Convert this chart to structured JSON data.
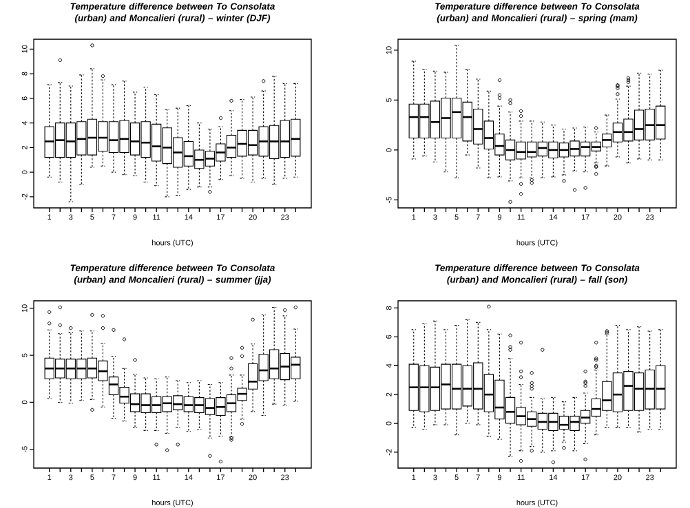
{
  "chart_data": [
    {
      "type": "box",
      "title": "Temperature difference between To Consolata (urban) and Moncalieri (rural) – winter (DJF)",
      "xlabel": "hours (UTC)",
      "categories": [
        "1",
        null,
        "3",
        null,
        "5",
        null,
        "7",
        null,
        "9",
        null,
        "11",
        null,
        null,
        "14",
        null,
        null,
        "17",
        null,
        null,
        "20",
        null,
        null,
        "23",
        null
      ],
      "ylim": [
        -2.9,
        10.8
      ],
      "yticks": [
        -2,
        0,
        2,
        4,
        6,
        8,
        10
      ],
      "boxes": [
        {
          "low": -0.4,
          "q1": 1.2,
          "median": 2.5,
          "q3": 3.7,
          "high": 7.1
        },
        {
          "low": -0.8,
          "q1": 1.2,
          "median": 2.6,
          "q3": 4.0,
          "high": 7.3,
          "outliers": [
            9.1
          ]
        },
        {
          "low": -2.4,
          "q1": 1.2,
          "median": 2.5,
          "q3": 4.0,
          "high": 7.0
        },
        {
          "low": -1.0,
          "q1": 1.4,
          "median": 2.7,
          "q3": 4.1,
          "high": 7.9
        },
        {
          "low": 0.4,
          "q1": 1.4,
          "median": 2.8,
          "q3": 4.3,
          "high": 8.4,
          "outliers": [
            10.3
          ]
        },
        {
          "low": 0.5,
          "q1": 1.7,
          "median": 2.8,
          "q3": 4.1,
          "high": 7.5,
          "outliers": [
            7.8
          ]
        },
        {
          "low": 0.0,
          "q1": 1.6,
          "median": 2.6,
          "q3": 4.1,
          "high": 7.1
        },
        {
          "low": -0.2,
          "q1": 1.6,
          "median": 2.7,
          "q3": 4.2,
          "high": 7.4
        },
        {
          "low": -0.3,
          "q1": 1.4,
          "median": 2.5,
          "q3": 4.0,
          "high": 6.5
        },
        {
          "low": -0.8,
          "q1": 1.2,
          "median": 2.4,
          "q3": 4.1,
          "high": 6.9
        },
        {
          "low": -1.1,
          "q1": 0.9,
          "median": 2.1,
          "q3": 3.9,
          "high": 6.3
        },
        {
          "low": -2.0,
          "q1": 0.7,
          "median": 2.0,
          "q3": 3.6,
          "high": 5.1
        },
        {
          "low": -1.9,
          "q1": 0.4,
          "median": 1.6,
          "q3": 2.8,
          "high": 5.2
        },
        {
          "low": -1.4,
          "q1": 0.5,
          "median": 1.3,
          "q3": 2.5,
          "high": 5.4
        },
        {
          "low": -1.2,
          "q1": 0.3,
          "median": 1.0,
          "q3": 1.8,
          "high": 4.0
        },
        {
          "low": -1.2,
          "q1": 0.5,
          "median": 1.1,
          "q3": 1.7,
          "high": 3.5,
          "outliers": [
            -1.6
          ]
        },
        {
          "low": -0.6,
          "q1": 0.9,
          "median": 1.6,
          "q3": 2.3,
          "high": 3.7,
          "outliers": [
            4.4
          ]
        },
        {
          "low": -0.3,
          "q1": 1.2,
          "median": 2.0,
          "q3": 3.0,
          "high": 5.0,
          "outliers": [
            5.8
          ]
        },
        {
          "low": -0.5,
          "q1": 1.3,
          "median": 2.3,
          "q3": 3.4,
          "high": 5.9
        },
        {
          "low": -0.8,
          "q1": 1.4,
          "median": 2.2,
          "q3": 3.4,
          "high": 6.1
        },
        {
          "low": -0.5,
          "q1": 1.3,
          "median": 2.5,
          "q3": 3.7,
          "high": 6.6,
          "outliers": [
            7.4
          ]
        },
        {
          "low": -1.0,
          "q1": 1.1,
          "median": 2.5,
          "q3": 3.8,
          "high": 7.8
        },
        {
          "low": -0.5,
          "q1": 1.2,
          "median": 2.5,
          "q3": 4.2,
          "high": 7.2
        },
        {
          "low": -0.4,
          "q1": 1.3,
          "median": 2.7,
          "q3": 4.3,
          "high": 7.2
        }
      ]
    },
    {
      "type": "box",
      "title": "Temperature difference between To Consolata (urban) and Moncalieri (rural) – spring (mam)",
      "xlabel": "hours (UTC)",
      "categories": [
        "1",
        null,
        "3",
        null,
        "5",
        null,
        "7",
        null,
        "9",
        null,
        "11",
        null,
        null,
        "14",
        null,
        null,
        "17",
        null,
        null,
        "20",
        null,
        null,
        "23",
        null
      ],
      "ylim": [
        -5.8,
        11.1
      ],
      "yticks": [
        -5,
        0,
        5,
        10
      ],
      "boxes": [
        {
          "low": -0.9,
          "q1": 1.2,
          "median": 3.3,
          "q3": 4.6,
          "high": 8.9
        },
        {
          "low": -0.6,
          "q1": 1.2,
          "median": 3.3,
          "q3": 4.6,
          "high": 8.1
        },
        {
          "low": -1.2,
          "q1": 1.2,
          "median": 2.8,
          "q3": 4.9,
          "high": 7.9
        },
        {
          "low": -2.2,
          "q1": 1.2,
          "median": 3.2,
          "q3": 5.2,
          "high": 7.8
        },
        {
          "low": -2.8,
          "q1": 1.2,
          "median": 3.8,
          "q3": 5.2,
          "high": 10.5
        },
        {
          "low": -0.5,
          "q1": 0.9,
          "median": 3.3,
          "q3": 4.8,
          "high": 8.1
        },
        {
          "low": -1.8,
          "q1": 0.6,
          "median": 2.1,
          "q3": 4.1,
          "high": 7.1
        },
        {
          "low": -2.8,
          "q1": 0.1,
          "median": 1.2,
          "q3": 2.9,
          "high": 5.9
        },
        {
          "low": -2.7,
          "q1": -0.5,
          "median": 0.4,
          "q3": 1.6,
          "high": 4.4,
          "outliers": [
            5.2,
            5.5,
            7.0
          ]
        },
        {
          "low": -3.1,
          "q1": -1.0,
          "median": 0.0,
          "q3": 1.0,
          "high": 3.8,
          "outliers": [
            -5.2,
            4.7,
            5.0
          ]
        },
        {
          "low": -2.8,
          "q1": -0.9,
          "median": -0.2,
          "q3": 0.8,
          "high": 2.9,
          "outliers": [
            -4.4,
            -3.4,
            3.4,
            3.9
          ]
        },
        {
          "low": -2.8,
          "q1": -0.7,
          "median": -0.2,
          "q3": 0.8,
          "high": 2.9,
          "outliers": [
            -3.3,
            -3.0
          ]
        },
        {
          "low": -2.8,
          "q1": -0.6,
          "median": 0.2,
          "q3": 0.8,
          "high": 2.8
        },
        {
          "low": -2.7,
          "q1": -0.8,
          "median": 0.0,
          "q3": 0.8,
          "high": 2.5
        },
        {
          "low": -2.5,
          "q1": -0.7,
          "median": 0.0,
          "q3": 0.7,
          "high": 2.1,
          "outliers": [
            -3.1
          ]
        },
        {
          "low": -2.1,
          "q1": -0.6,
          "median": 0.1,
          "q3": 0.9,
          "high": 2.2,
          "outliers": [
            -4.0
          ]
        },
        {
          "low": -2.2,
          "q1": -0.6,
          "median": 0.3,
          "q3": 0.8,
          "high": 2.3,
          "outliers": [
            -3.8
          ]
        },
        {
          "low": -1.3,
          "q1": -0.1,
          "median": 0.3,
          "q3": 0.8,
          "high": 1.8,
          "outliers": [
            -2.4,
            -1.7,
            -1.6,
            2.2
          ]
        },
        {
          "low": -1.6,
          "q1": 0.3,
          "median": 1.0,
          "q3": 1.6,
          "high": 3.5
        },
        {
          "low": -0.7,
          "q1": 0.8,
          "median": 1.8,
          "q3": 2.7,
          "high": 5.1,
          "outliers": [
            5.6,
            6.2,
            6.4,
            6.5
          ]
        },
        {
          "low": -1.3,
          "q1": 0.9,
          "median": 1.8,
          "q3": 3.1,
          "high": 6.4,
          "outliers": [
            6.8,
            7.0,
            7.2
          ]
        },
        {
          "low": -0.9,
          "q1": 1.0,
          "median": 2.1,
          "q3": 4.0,
          "high": 7.7
        },
        {
          "low": -1.0,
          "q1": 1.0,
          "median": 2.5,
          "q3": 4.1,
          "high": 7.6
        },
        {
          "low": -1.0,
          "q1": 1.1,
          "median": 2.5,
          "q3": 4.4,
          "high": 8.0
        }
      ]
    },
    {
      "type": "box",
      "title": "Temperature difference between To Consolata (urban) and Moncalieri (rural) – summer (jja)",
      "xlabel": "hours (UTC)",
      "categories": [
        "1",
        null,
        "3",
        null,
        "5",
        null,
        "7",
        null,
        "9",
        null,
        "11",
        null,
        null,
        "14",
        null,
        null,
        "17",
        null,
        null,
        "20",
        null,
        null,
        "23",
        null
      ],
      "ylim": [
        -7.0,
        10.8
      ],
      "yticks": [
        -5,
        0,
        5,
        10
      ],
      "boxes": [
        {
          "low": 0.4,
          "q1": 2.5,
          "median": 3.6,
          "q3": 4.7,
          "high": 7.7,
          "outliers": [
            8.4,
            9.6
          ]
        },
        {
          "low": 0.0,
          "q1": 2.6,
          "median": 3.6,
          "q3": 4.6,
          "high": 7.3,
          "outliers": [
            8.2,
            10.1
          ]
        },
        {
          "low": -0.1,
          "q1": 2.5,
          "median": 3.6,
          "q3": 4.6,
          "high": 7.4,
          "outliers": [
            7.9
          ]
        },
        {
          "low": 0.2,
          "q1": 2.5,
          "median": 3.6,
          "q3": 4.6,
          "high": 7.6
        },
        {
          "low": 0.3,
          "q1": 2.6,
          "median": 3.6,
          "q3": 4.7,
          "high": 7.6,
          "outliers": [
            -0.8,
            9.3
          ]
        },
        {
          "low": -0.5,
          "q1": 2.3,
          "median": 3.3,
          "q3": 4.4,
          "high": 6.3,
          "outliers": [
            7.9,
            9.2
          ]
        },
        {
          "low": -1.7,
          "q1": 0.8,
          "median": 1.9,
          "q3": 2.7,
          "high": 4.9,
          "outliers": [
            7.7
          ]
        },
        {
          "low": -2.0,
          "q1": -0.1,
          "median": 0.6,
          "q3": 1.6,
          "high": 3.6,
          "outliers": [
            6.7
          ]
        },
        {
          "low": -2.7,
          "q1": -1.0,
          "median": -0.2,
          "q3": 0.9,
          "high": 3.0,
          "outliers": [
            4.5
          ]
        },
        {
          "low": -3.0,
          "q1": -1.1,
          "median": -0.3,
          "q3": 0.9,
          "high": 2.6
        },
        {
          "low": -3.0,
          "q1": -1.1,
          "median": -0.3,
          "q3": 0.6,
          "high": 2.5,
          "outliers": [
            -4.5
          ]
        },
        {
          "low": -3.3,
          "q1": -1.0,
          "median": -0.1,
          "q3": 0.6,
          "high": 2.7,
          "outliers": [
            -5.1
          ]
        },
        {
          "low": -2.7,
          "q1": -0.8,
          "median": -0.2,
          "q3": 0.7,
          "high": 2.3,
          "outliers": [
            -4.5
          ]
        },
        {
          "low": -3.1,
          "q1": -1.0,
          "median": -0.3,
          "q3": 0.6,
          "high": 2.1
        },
        {
          "low": -2.9,
          "q1": -1.1,
          "median": -0.3,
          "q3": 0.5,
          "high": 2.3
        },
        {
          "low": -3.8,
          "q1": -1.3,
          "median": -0.6,
          "q3": 0.4,
          "high": 1.9,
          "outliers": [
            -5.7
          ]
        },
        {
          "low": -3.6,
          "q1": -1.4,
          "median": -0.5,
          "q3": 0.5,
          "high": 2.1,
          "outliers": [
            -6.3
          ]
        },
        {
          "low": -3.7,
          "q1": -1.0,
          "median": -0.1,
          "q3": 0.8,
          "high": 2.9,
          "outliers": [
            -4.0,
            -3.8,
            3.6,
            4.7
          ]
        },
        {
          "low": -1.8,
          "q1": 0.2,
          "median": 0.9,
          "q3": 1.5,
          "high": 2.9,
          "outliers": [
            -2.3,
            4.9,
            5.8
          ]
        },
        {
          "low": -1.0,
          "q1": 1.4,
          "median": 2.2,
          "q3": 4.1,
          "high": 6.2,
          "outliers": [
            8.8
          ]
        },
        {
          "low": -1.4,
          "q1": 2.3,
          "median": 3.4,
          "q3": 5.1,
          "high": 9.3
        },
        {
          "low": -0.2,
          "q1": 2.5,
          "median": 3.6,
          "q3": 5.6,
          "high": 10.1
        },
        {
          "low": -0.3,
          "q1": 2.4,
          "median": 3.8,
          "q3": 5.2,
          "high": 9.2,
          "outliers": [
            9.8
          ]
        },
        {
          "low": 0.1,
          "q1": 2.5,
          "median": 4.0,
          "q3": 4.8,
          "high": 7.8,
          "outliers": [
            10.1
          ]
        }
      ]
    },
    {
      "type": "box",
      "title": "Temperature difference between To Consolata (urban) and Moncalieri (rural) – fall (son)",
      "xlabel": "hours (UTC)",
      "categories": [
        "1",
        null,
        "3",
        null,
        "5",
        null,
        "7",
        null,
        "9",
        null,
        "11",
        null,
        null,
        "14",
        null,
        null,
        "17",
        null,
        null,
        "20",
        null,
        null,
        "23",
        null
      ],
      "ylim": [
        -3.1,
        8.5
      ],
      "yticks": [
        -2,
        0,
        2,
        4,
        6,
        8
      ],
      "boxes": [
        {
          "low": -0.3,
          "q1": 0.9,
          "median": 2.5,
          "q3": 4.1,
          "high": 6.5
        },
        {
          "low": -0.4,
          "q1": 0.8,
          "median": 2.5,
          "q3": 4.0,
          "high": 6.9
        },
        {
          "low": -0.1,
          "q1": 0.9,
          "median": 2.5,
          "q3": 3.9,
          "high": 7.1
        },
        {
          "low": -0.1,
          "q1": 1.0,
          "median": 2.7,
          "q3": 4.1,
          "high": 6.5
        },
        {
          "low": -0.8,
          "q1": 1.0,
          "median": 2.4,
          "q3": 4.1,
          "high": 6.8
        },
        {
          "low": 0.0,
          "q1": 1.2,
          "median": 2.4,
          "q3": 4.0,
          "high": 7.2
        },
        {
          "low": -0.1,
          "q1": 1.0,
          "median": 2.4,
          "q3": 4.2,
          "high": 7.0
        },
        {
          "low": -0.9,
          "q1": 0.8,
          "median": 2.0,
          "q3": 3.4,
          "high": 6.5,
          "outliers": [
            8.1
          ]
        },
        {
          "low": -1.1,
          "q1": 0.3,
          "median": 1.1,
          "q3": 3.0,
          "high": 6.2
        },
        {
          "low": -2.3,
          "q1": 0.0,
          "median": 0.8,
          "q3": 1.8,
          "high": 4.5,
          "outliers": [
            5.1,
            5.3,
            6.1
          ]
        },
        {
          "low": -1.9,
          "q1": -0.1,
          "median": 0.5,
          "q3": 1.1,
          "high": 2.7,
          "outliers": [
            -2.6,
            3.2,
            3.6,
            5.6
          ]
        },
        {
          "low": -1.6,
          "q1": -0.2,
          "median": 0.3,
          "q3": 0.8,
          "high": 1.8,
          "outliers": [
            -1.9,
            2.4,
            2.6,
            2.8,
            3.5
          ]
        },
        {
          "low": -2.0,
          "q1": -0.4,
          "median": 0.1,
          "q3": 0.7,
          "high": 1.7,
          "outliers": [
            5.1
          ]
        },
        {
          "low": -1.9,
          "q1": -0.5,
          "median": 0.1,
          "q3": 0.7,
          "high": 1.8,
          "outliers": [
            -2.7
          ]
        },
        {
          "low": -1.3,
          "q1": -0.4,
          "median": -0.1,
          "q3": 0.5,
          "high": 1.5,
          "outliers": [
            -1.7
          ]
        },
        {
          "low": -1.9,
          "q1": -0.5,
          "median": 0.1,
          "q3": 0.5,
          "high": 1.8
        },
        {
          "low": -1.4,
          "q1": 0.0,
          "median": 0.4,
          "q3": 0.9,
          "high": 2.1,
          "outliers": [
            -2.5,
            2.6,
            2.8,
            2.9,
            3.6
          ]
        },
        {
          "low": -0.8,
          "q1": 0.5,
          "median": 1.0,
          "q3": 1.7,
          "high": 3.7,
          "outliers": [
            3.9,
            4.0,
            4.4,
            4.5,
            5.6
          ]
        },
        {
          "low": -0.3,
          "q1": 0.9,
          "median": 1.6,
          "q3": 2.9,
          "high": 6.2,
          "outliers": [
            6.3,
            6.4
          ]
        },
        {
          "low": -0.3,
          "q1": 0.8,
          "median": 2.0,
          "q3": 3.5,
          "high": 6.8
        },
        {
          "low": -0.3,
          "q1": 0.9,
          "median": 2.6,
          "q3": 3.6,
          "high": 6.5
        },
        {
          "low": -0.6,
          "q1": 0.9,
          "median": 2.4,
          "q3": 3.5,
          "high": 6.7
        },
        {
          "low": -0.4,
          "q1": 1.0,
          "median": 2.4,
          "q3": 3.7,
          "high": 6.4
        },
        {
          "low": -0.4,
          "q1": 1.0,
          "median": 2.4,
          "q3": 4.0,
          "high": 6.5
        }
      ]
    }
  ]
}
